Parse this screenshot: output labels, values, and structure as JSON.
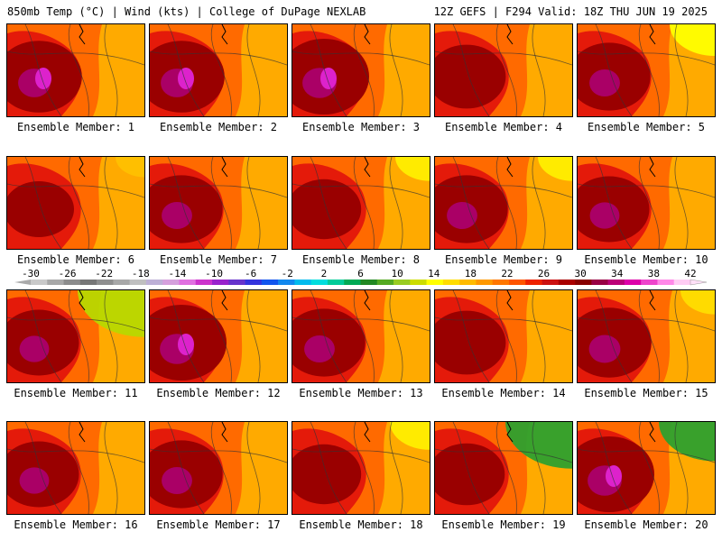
{
  "header": {
    "left": "850mb Temp (°C) | Wind (kts) | College of DuPage NEXLAB",
    "right": "12Z GEFS | F294 Valid: 18Z THU JUN 19 2025"
  },
  "members": [
    {
      "label": "Ensemble Member: 1",
      "hot": 0.9,
      "cool": 0.1,
      "cool_color": "#ffc000"
    },
    {
      "label": "Ensemble Member: 2",
      "hot": 0.9,
      "cool": 0.1,
      "cool_color": "#ffc000"
    },
    {
      "label": "Ensemble Member: 3",
      "hot": 1.0,
      "cool": 0.15,
      "cool_color": "#ffc000"
    },
    {
      "label": "Ensemble Member: 4",
      "hot": 0.7,
      "cool": 0.15,
      "cool_color": "#ffc000"
    },
    {
      "label": "Ensemble Member: 5",
      "hot": 0.8,
      "cool": 0.5,
      "cool_color": "#ffff00"
    },
    {
      "label": "Ensemble Member: 6",
      "hot": 0.5,
      "cool": 0.2,
      "cool_color": "#ffc000"
    },
    {
      "label": "Ensemble Member: 7",
      "hot": 0.8,
      "cool": 0.1,
      "cool_color": "#ffc000"
    },
    {
      "label": "Ensemble Member: 8",
      "hot": 0.6,
      "cool": 0.3,
      "cool_color": "#ffee00"
    },
    {
      "label": "Ensemble Member: 9",
      "hot": 0.8,
      "cool": 0.3,
      "cool_color": "#ffee00"
    },
    {
      "label": "Ensemble Member: 10",
      "hot": 0.75,
      "cool": 0.1,
      "cool_color": "#ffc000"
    },
    {
      "label": "Ensemble Member: 11",
      "hot": 0.75,
      "cool": 0.9,
      "cool_color": "#b8d800"
    },
    {
      "label": "Ensemble Member: 12",
      "hot": 1.0,
      "cool": 0.1,
      "cool_color": "#ffc000"
    },
    {
      "label": "Ensemble Member: 13",
      "hot": 0.8,
      "cool": 0.1,
      "cool_color": "#ffc000"
    },
    {
      "label": "Ensemble Member: 14",
      "hot": 0.7,
      "cool": 0.1,
      "cool_color": "#ffc000"
    },
    {
      "label": "Ensemble Member: 15",
      "hot": 0.85,
      "cool": 0.3,
      "cool_color": "#ffdd00"
    },
    {
      "label": "Ensemble Member: 16",
      "hot": 0.75,
      "cool": 0.1,
      "cool_color": "#ffc000"
    },
    {
      "label": "Ensemble Member: 17",
      "hot": 0.8,
      "cool": 0.1,
      "cool_color": "#ffc000"
    },
    {
      "label": "Ensemble Member: 18",
      "hot": 0.6,
      "cool": 0.4,
      "cool_color": "#ffee00"
    },
    {
      "label": "Ensemble Member: 19",
      "hot": 0.65,
      "cool": 0.9,
      "cool_color": "#2ea02e"
    },
    {
      "label": "Ensemble Member: 20",
      "hot": 1.0,
      "cool": 0.7,
      "cool_color": "#2ea02e"
    }
  ],
  "legend": {
    "ticks": [
      "-30",
      "-26",
      "-22",
      "-18",
      "-14",
      "-10",
      "-6",
      "-2",
      "2",
      "6",
      "10",
      "14",
      "18",
      "22",
      "26",
      "30",
      "34",
      "38",
      "42"
    ],
    "colors": [
      "#c9c9c9",
      "#a8a8a8",
      "#8c8c8c",
      "#777777",
      "#8f8f8f",
      "#a8a8a8",
      "#c0c0c0",
      "#bdb0d6",
      "#d5a0dc",
      "#e070e0",
      "#cc33cc",
      "#9922cc",
      "#6633cc",
      "#3333dd",
      "#1155ee",
      "#1188ee",
      "#00bbee",
      "#00dddd",
      "#00cc99",
      "#00aa55",
      "#228822",
      "#55aa22",
      "#99cc22",
      "#ccdd00",
      "#ffff00",
      "#ffdd00",
      "#ffbb00",
      "#ff9900",
      "#ff7700",
      "#ff5500",
      "#ee2200",
      "#cc1111",
      "#aa0000",
      "#880000",
      "#990044",
      "#bb0077",
      "#dd00aa",
      "#ee44cc",
      "#ff88e8",
      "#ffccf4"
    ]
  }
}
